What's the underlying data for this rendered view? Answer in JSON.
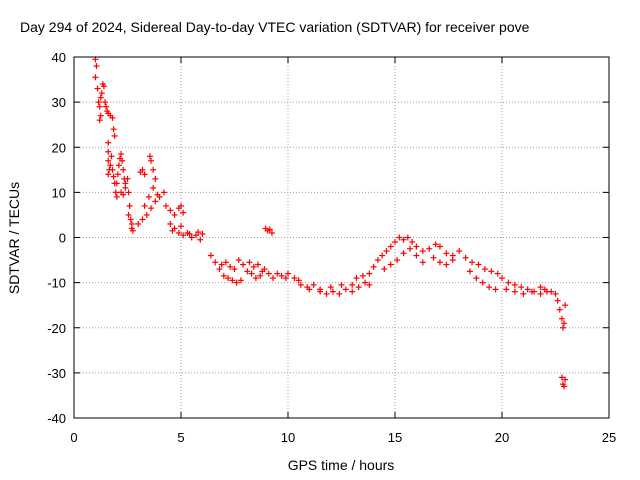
{
  "chart_data": {
    "type": "scatter",
    "title": "Day 294 of 2024, Sidereal Day-to-day VTEC variation (SDTVAR) for receiver pove",
    "xlabel": "GPS time / hours",
    "ylabel": "SDTVAR / TECUs",
    "xlim": [
      0,
      25
    ],
    "ylim": [
      -40,
      40
    ],
    "x_ticks": [
      0,
      5,
      10,
      15,
      20,
      25
    ],
    "y_ticks": [
      -40,
      -30,
      -20,
      -10,
      0,
      10,
      20,
      30,
      40
    ],
    "x_tick_labels": [
      "0",
      "5",
      "10",
      "15",
      "20",
      "25"
    ],
    "y_tick_labels": [
      "-40",
      "-30",
      "-20",
      "-10",
      "0",
      "10",
      "20",
      "30",
      "40"
    ],
    "grid": true,
    "marker": "+",
    "color": "#ff0000",
    "series": [
      {
        "name": "SDTVAR",
        "points": [
          [
            1.0,
            39.5
          ],
          [
            1.05,
            38.0
          ],
          [
            1.0,
            35.5
          ],
          [
            1.1,
            33.0
          ],
          [
            1.15,
            30.0
          ],
          [
            1.2,
            29.0
          ],
          [
            1.25,
            31.0
          ],
          [
            1.3,
            32.0
          ],
          [
            1.35,
            34.0
          ],
          [
            1.4,
            33.5
          ],
          [
            1.45,
            30.0
          ],
          [
            1.5,
            29.0
          ],
          [
            1.25,
            27.0
          ],
          [
            1.2,
            26.0
          ],
          [
            1.55,
            28.0
          ],
          [
            1.6,
            27.5
          ],
          [
            1.7,
            27.0
          ],
          [
            1.8,
            26.5
          ],
          [
            1.85,
            24.0
          ],
          [
            1.9,
            22.5
          ],
          [
            1.6,
            21.0
          ],
          [
            1.6,
            19.0
          ],
          [
            1.6,
            17.0
          ],
          [
            1.65,
            15.0
          ],
          [
            1.6,
            14.0
          ],
          [
            1.7,
            16.0
          ],
          [
            1.75,
            18.0
          ],
          [
            1.8,
            15.0
          ],
          [
            1.85,
            13.5
          ],
          [
            1.9,
            12.0
          ],
          [
            1.95,
            10.0
          ],
          [
            2.0,
            9.0
          ],
          [
            2.0,
            12.0
          ],
          [
            2.05,
            14.0
          ],
          [
            2.1,
            16.0
          ],
          [
            2.15,
            17.5
          ],
          [
            2.2,
            18.5
          ],
          [
            2.25,
            17.0
          ],
          [
            2.3,
            15.0
          ],
          [
            2.35,
            13.0
          ],
          [
            2.4,
            12.0
          ],
          [
            2.2,
            10.0
          ],
          [
            2.3,
            9.5
          ],
          [
            2.4,
            11.0
          ],
          [
            2.5,
            13.0
          ],
          [
            2.55,
            10.0
          ],
          [
            2.6,
            7.0
          ],
          [
            2.55,
            5.0
          ],
          [
            2.65,
            4.0
          ],
          [
            2.7,
            3.0
          ],
          [
            2.7,
            2.0
          ],
          [
            2.75,
            1.5
          ],
          [
            3.1,
            14.5
          ],
          [
            3.2,
            15.0
          ],
          [
            3.3,
            14.0
          ],
          [
            3.0,
            3.0
          ],
          [
            3.2,
            4.0
          ],
          [
            3.4,
            5.0
          ],
          [
            3.6,
            6.5
          ],
          [
            3.8,
            8.0
          ],
          [
            4.0,
            9.0
          ],
          [
            4.2,
            10.0
          ],
          [
            3.3,
            7.0
          ],
          [
            3.5,
            9.0
          ],
          [
            3.7,
            11.0
          ],
          [
            3.9,
            9.5
          ],
          [
            3.55,
            18.0
          ],
          [
            3.6,
            17.0
          ],
          [
            3.7,
            15.0
          ],
          [
            3.8,
            13.0
          ],
          [
            4.3,
            7.0
          ],
          [
            4.5,
            6.0
          ],
          [
            4.7,
            5.0
          ],
          [
            4.9,
            6.5
          ],
          [
            5.0,
            7.0
          ],
          [
            5.1,
            5.5
          ],
          [
            4.5,
            3.0
          ],
          [
            4.7,
            2.0
          ],
          [
            4.9,
            1.0
          ],
          [
            5.1,
            0.5
          ],
          [
            5.3,
            1.0
          ],
          [
            5.5,
            0.0
          ],
          [
            5.7,
            0.5
          ],
          [
            5.9,
            -0.5
          ],
          [
            6.0,
            0.8
          ],
          [
            4.6,
            1.5
          ],
          [
            5.0,
            2.5
          ],
          [
            5.4,
            0.8
          ],
          [
            5.8,
            1.2
          ],
          [
            6.4,
            -4.0
          ],
          [
            6.6,
            -5.5
          ],
          [
            6.8,
            -7.0
          ],
          [
            7.0,
            -8.5
          ],
          [
            7.2,
            -9.0
          ],
          [
            7.4,
            -9.5
          ],
          [
            7.6,
            -10.0
          ],
          [
            7.8,
            -9.5
          ],
          [
            6.9,
            -6.0
          ],
          [
            7.1,
            -5.5
          ],
          [
            7.3,
            -6.5
          ],
          [
            7.5,
            -7.0
          ],
          [
            7.7,
            -5.0
          ],
          [
            7.9,
            -6.0
          ],
          [
            8.1,
            -7.5
          ],
          [
            8.3,
            -8.0
          ],
          [
            8.5,
            -9.0
          ],
          [
            8.7,
            -8.5
          ],
          [
            8.9,
            -7.0
          ],
          [
            9.1,
            -8.0
          ],
          [
            9.3,
            -9.0
          ],
          [
            9.5,
            -8.0
          ],
          [
            9.7,
            -8.5
          ],
          [
            9.9,
            -9.0
          ],
          [
            8.2,
            -5.5
          ],
          [
            8.4,
            -6.5
          ],
          [
            8.6,
            -6.0
          ],
          [
            8.8,
            -7.5
          ],
          [
            8.95,
            2.0
          ],
          [
            9.05,
            1.5
          ],
          [
            9.15,
            1.8
          ],
          [
            9.25,
            1.0
          ],
          [
            10.0,
            -8.0
          ],
          [
            10.3,
            -9.0
          ],
          [
            10.6,
            -10.5
          ],
          [
            10.9,
            -11.0
          ],
          [
            11.2,
            -10.5
          ],
          [
            11.5,
            -11.5
          ],
          [
            11.8,
            -12.5
          ],
          [
            12.1,
            -12.0
          ],
          [
            12.4,
            -12.5
          ],
          [
            12.7,
            -11.5
          ],
          [
            13.0,
            -12.0
          ],
          [
            13.3,
            -11.0
          ],
          [
            13.6,
            -10.0
          ],
          [
            10.5,
            -9.5
          ],
          [
            11.0,
            -11.5
          ],
          [
            11.5,
            -12.0
          ],
          [
            12.0,
            -11.0
          ],
          [
            12.5,
            -10.5
          ],
          [
            13.0,
            -10.5
          ],
          [
            13.8,
            -8.0
          ],
          [
            14.0,
            -6.5
          ],
          [
            14.2,
            -5.0
          ],
          [
            14.4,
            -4.0
          ],
          [
            14.6,
            -3.0
          ],
          [
            14.8,
            -2.0
          ],
          [
            15.0,
            -1.0
          ],
          [
            15.2,
            0.0
          ],
          [
            15.4,
            -0.5
          ],
          [
            15.6,
            0.0
          ],
          [
            15.8,
            -1.0
          ],
          [
            16.0,
            -2.0
          ],
          [
            14.5,
            -7.0
          ],
          [
            14.8,
            -6.0
          ],
          [
            15.1,
            -5.0
          ],
          [
            15.4,
            -3.5
          ],
          [
            15.7,
            -2.5
          ],
          [
            16.0,
            -4.0
          ],
          [
            16.3,
            -5.5
          ],
          [
            13.2,
            -9.0
          ],
          [
            13.5,
            -8.5
          ],
          [
            13.8,
            -10.5
          ],
          [
            16.3,
            -3.0
          ],
          [
            16.6,
            -2.5
          ],
          [
            16.9,
            -1.5
          ],
          [
            17.1,
            -2.0
          ],
          [
            17.4,
            -3.5
          ],
          [
            17.7,
            -4.0
          ],
          [
            18.0,
            -3.0
          ],
          [
            16.8,
            -4.5
          ],
          [
            17.1,
            -5.5
          ],
          [
            17.4,
            -6.0
          ],
          [
            17.7,
            -5.0
          ],
          [
            18.3,
            -4.5
          ],
          [
            18.6,
            -5.5
          ],
          [
            18.9,
            -6.0
          ],
          [
            19.2,
            -7.0
          ],
          [
            19.5,
            -7.5
          ],
          [
            19.8,
            -8.0
          ],
          [
            18.5,
            -7.5
          ],
          [
            18.8,
            -9.0
          ],
          [
            19.1,
            -10.0
          ],
          [
            19.4,
            -11.0
          ],
          [
            19.7,
            -11.5
          ],
          [
            20.0,
            -9.0
          ],
          [
            20.3,
            -10.0
          ],
          [
            20.6,
            -10.5
          ],
          [
            20.9,
            -11.0
          ],
          [
            21.2,
            -11.5
          ],
          [
            21.5,
            -12.0
          ],
          [
            20.2,
            -11.5
          ],
          [
            20.6,
            -12.0
          ],
          [
            21.0,
            -12.5
          ],
          [
            21.4,
            -12.0
          ],
          [
            21.8,
            -12.5
          ],
          [
            22.1,
            -12.0
          ],
          [
            21.8,
            -11.0
          ],
          [
            22.0,
            -11.5
          ],
          [
            22.3,
            -12.0
          ],
          [
            22.5,
            -12.5
          ],
          [
            22.6,
            -14.0
          ],
          [
            22.7,
            -16.0
          ],
          [
            22.8,
            -18.0
          ],
          [
            22.85,
            -20.0
          ],
          [
            22.9,
            -19.0
          ],
          [
            22.95,
            -15.0
          ],
          [
            22.8,
            -31.0
          ],
          [
            22.85,
            -32.5
          ],
          [
            22.9,
            -33.0
          ],
          [
            22.95,
            -31.5
          ]
        ]
      }
    ]
  }
}
